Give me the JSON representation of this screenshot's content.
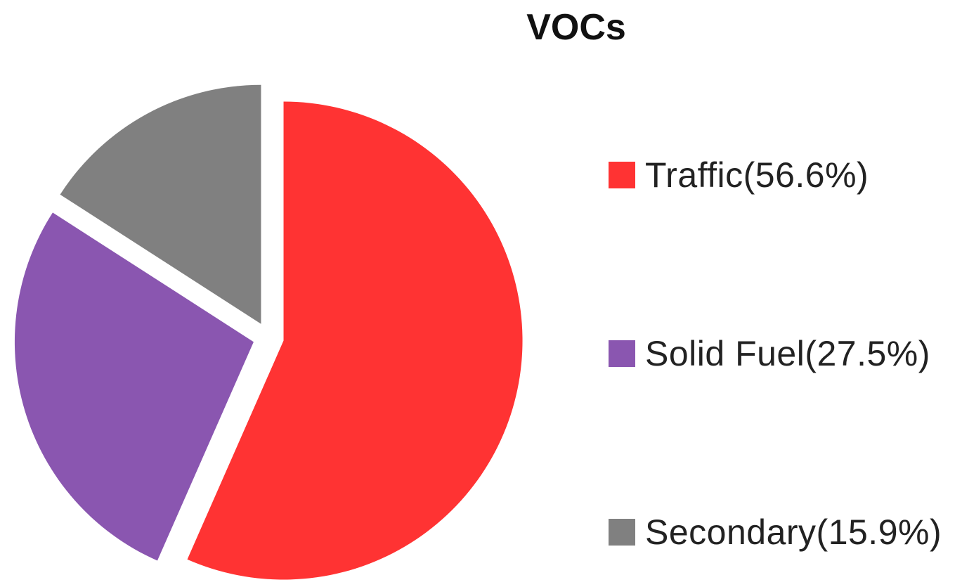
{
  "chart_data": {
    "type": "pie",
    "title": "VOCs",
    "series": [
      {
        "name": "",
        "categories": [
          "Traffic",
          "Solid Fuel",
          "Secondary"
        ],
        "values": [
          56.6,
          27.5,
          15.9
        ]
      }
    ],
    "slices": [
      {
        "label": "Traffic",
        "value": 56.6,
        "color": "#ff3333",
        "legend_text": "Traffic(56.6%)",
        "exploded": true
      },
      {
        "label": "Solid Fuel",
        "value": 27.5,
        "color": "#8a56b0",
        "legend_text": "Solid Fuel(27.5%)",
        "exploded": true
      },
      {
        "label": "Secondary",
        "value": 15.9,
        "color": "#808080",
        "legend_text": "Secondary(15.9%)",
        "exploded": true
      }
    ],
    "legend": {
      "placement": "right"
    }
  }
}
